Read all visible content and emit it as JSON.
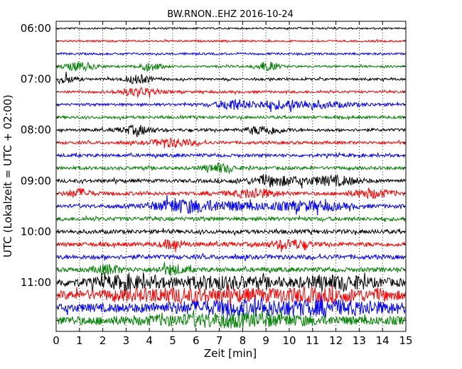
{
  "chart_data": {
    "type": "line",
    "title": "BW.RNON..EHZ 2016-10-24",
    "xlabel": "Zeit  [min]",
    "ylabel": "UTC (Lokalzeit = UTC + 02:00)",
    "xlim": [
      0,
      15
    ],
    "x_ticks": [
      "0",
      "1",
      "2",
      "3",
      "4",
      "5",
      "6",
      "7",
      "8",
      "9",
      "10",
      "11",
      "12",
      "13",
      "14",
      "15"
    ],
    "y_ticks": [
      "06:00",
      "07:00",
      "08:00",
      "09:00",
      "10:00",
      "11:00"
    ],
    "row_interval_minutes": 15,
    "first_row": "06:00",
    "rows": 24,
    "colors": [
      "#000000",
      "#ff0000",
      "#0000ff",
      "#008000"
    ],
    "grid": "vertical dotted",
    "legend": "none"
  }
}
